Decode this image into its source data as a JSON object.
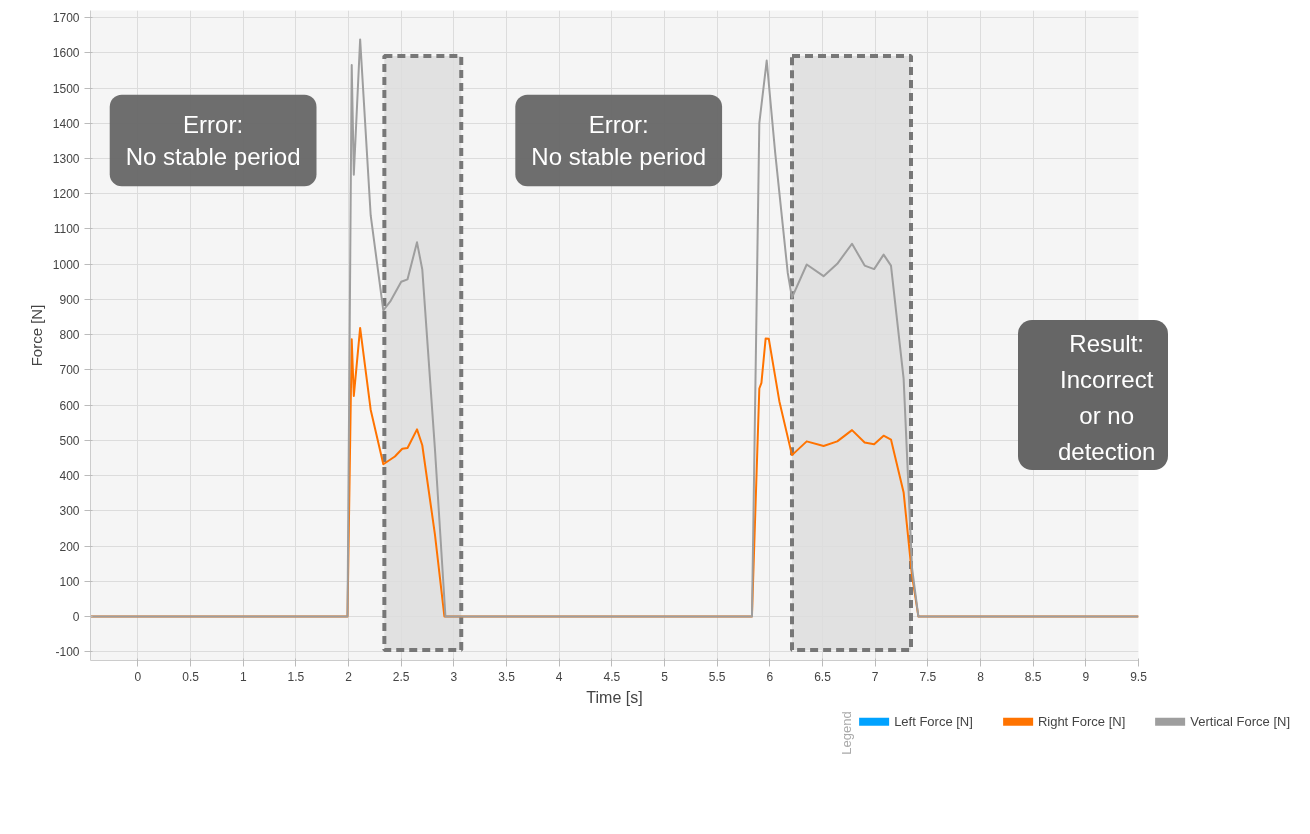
{
  "chart_data": {
    "type": "line",
    "xlabel": "Time [s]",
    "ylabel": "Force [N]",
    "legend_title": "Legend",
    "xlim": [
      -0.45,
      9.5
    ],
    "ylim": [
      -125,
      1720
    ],
    "xticks": [
      0,
      0.5,
      1,
      1.5,
      2,
      2.5,
      3,
      3.5,
      4,
      4.5,
      5,
      5.5,
      6,
      6.5,
      7,
      7.5,
      8,
      8.5,
      9,
      9.5
    ],
    "yticks": [
      -100,
      0,
      100,
      200,
      300,
      400,
      500,
      600,
      700,
      800,
      900,
      1000,
      1100,
      1200,
      1300,
      1400,
      1500,
      1600,
      1700
    ],
    "grid": true,
    "legend": "bottom",
    "marker": "none",
    "line_style": "solid",
    "series": [
      {
        "name": "Left Force [N]",
        "color": "#00a2ff"
      },
      {
        "name": "Right Force [N]",
        "color": "#ff7300",
        "x": [
          -0.45,
          1.99,
          2.03,
          2.05,
          2.11,
          2.21,
          2.33,
          2.44,
          2.51,
          2.56,
          2.65,
          2.7,
          2.82,
          2.91,
          5.83,
          5.9,
          5.92,
          5.96,
          5.99,
          6.09,
          6.21,
          6.35,
          6.51,
          6.64,
          6.78,
          6.9,
          6.99,
          7.08,
          7.15,
          7.27,
          7.35,
          7.41,
          9.5
        ],
        "values": [
          0,
          0,
          787,
          626,
          819,
          587,
          432,
          454,
          476,
          478,
          531,
          486,
          233,
          0,
          0,
          647,
          663,
          789,
          788,
          611,
          458,
          497,
          484,
          497,
          529,
          494,
          489,
          513,
          502,
          352,
          116,
          0,
          0
        ]
      },
      {
        "name": "Vertical Force [N]",
        "color": "#9e9e9e",
        "x": [
          -0.45,
          1.99,
          2.03,
          2.05,
          2.11,
          2.21,
          2.33,
          2.4,
          2.5,
          2.56,
          2.65,
          2.7,
          2.82,
          2.92,
          5.83,
          5.9,
          5.97,
          6.05,
          6.17,
          6.21,
          6.35,
          6.51,
          6.64,
          6.78,
          6.9,
          6.99,
          7.08,
          7.15,
          7.27,
          7.35,
          7.41,
          9.5
        ],
        "values": [
          0,
          0,
          1565,
          1254,
          1638,
          1139,
          869,
          896,
          950,
          957,
          1062,
          985,
          476,
          0,
          0,
          1400,
          1578,
          1318,
          975,
          905,
          999,
          966,
          1001,
          1058,
          996,
          986,
          1027,
          996,
          675,
          137,
          0,
          0
        ]
      }
    ],
    "bands": [
      {
        "axis": "x",
        "from": 2.34,
        "to": 3.07,
        "color": "#dddddd"
      },
      {
        "axis": "x",
        "from": 6.21,
        "to": 7.34,
        "color": "#dddddd"
      }
    ],
    "annotations": [
      "Error:\nNo stable period",
      "Error:\nNo stable period",
      "Result:\nIncorrect or no detection"
    ]
  }
}
